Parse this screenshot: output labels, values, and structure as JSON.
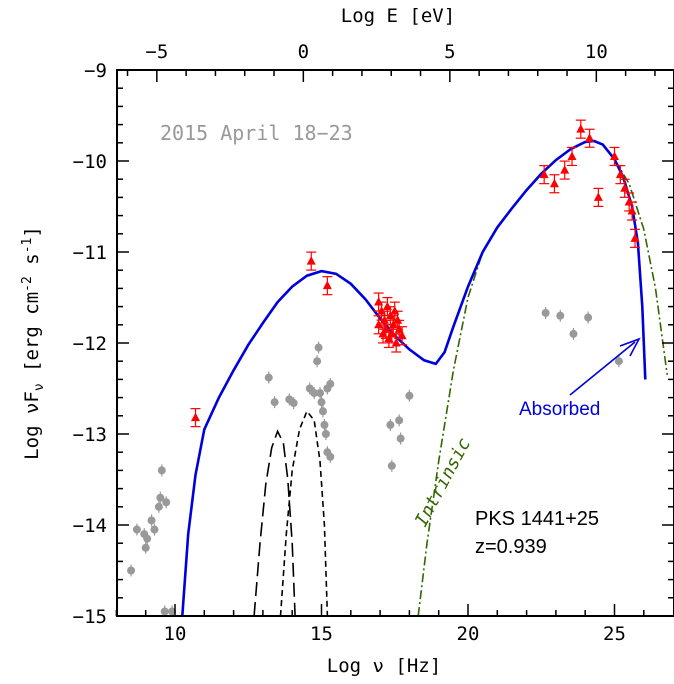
{
  "chart_data": {
    "type": "scatter",
    "xlabel": "Log ν [Hz]",
    "ylabel": "Log νF",
    "ylabel_sub": "ν",
    "ylabel_units": " [erg cm",
    "ylabel_exp1": "-2",
    "ylabel_mid": " s",
    "ylabel_exp2": "-1",
    "ylabel_end": "]",
    "x2label": "Log E [eV]",
    "xlim": [
      8,
      26.8
    ],
    "ylim": [
      -15,
      -9
    ],
    "xticks": [
      "10",
      "15",
      "20",
      "25"
    ],
    "yticks": [
      "−15",
      "−14",
      "−13",
      "−12",
      "−11",
      "−10",
      "−9"
    ],
    "x2ticks": [
      "−5",
      "0",
      "5",
      "10"
    ],
    "annotations": {
      "epoch": "2015 April 18−23",
      "source": "PKS 1441+25",
      "redshift": "z=0.939",
      "intrinsic": "Intrinsic",
      "absorbed": "Absorbed"
    },
    "colors": {
      "red": "#ff0000",
      "grey": "#999999",
      "blue": "#0000dd",
      "green": "#336600",
      "black": "#000000"
    },
    "red_points": [
      [
        10.7,
        -12.82
      ],
      [
        14.65,
        -11.1
      ],
      [
        15.2,
        -11.37
      ],
      [
        16.95,
        -11.55
      ],
      [
        16.95,
        -11.8
      ],
      [
        17.05,
        -11.65
      ],
      [
        17.1,
        -11.9
      ],
      [
        17.15,
        -11.75
      ],
      [
        17.2,
        -11.85
      ],
      [
        17.25,
        -11.6
      ],
      [
        17.3,
        -11.95
      ],
      [
        17.35,
        -11.7
      ],
      [
        17.4,
        -11.9
      ],
      [
        17.45,
        -11.8
      ],
      [
        17.5,
        -11.65
      ],
      [
        17.55,
        -12.0
      ],
      [
        17.6,
        -11.75
      ],
      [
        17.65,
        -11.85
      ],
      [
        17.75,
        -11.92
      ],
      [
        22.6,
        -10.15
      ],
      [
        22.95,
        -10.25
      ],
      [
        23.3,
        -10.1
      ],
      [
        23.55,
        -9.95
      ],
      [
        23.85,
        -9.65
      ],
      [
        24.15,
        -9.75
      ],
      [
        24.45,
        -10.4
      ],
      [
        25.0,
        -9.95
      ],
      [
        25.2,
        -10.15
      ],
      [
        25.35,
        -10.3
      ],
      [
        25.5,
        -10.45
      ],
      [
        25.6,
        -10.55
      ],
      [
        25.7,
        -10.85
      ]
    ],
    "grey_points": [
      [
        8.5,
        -14.5
      ],
      [
        8.7,
        -14.05
      ],
      [
        8.95,
        -14.1
      ],
      [
        9.0,
        -14.25
      ],
      [
        9.05,
        -14.15
      ],
      [
        9.2,
        -13.95
      ],
      [
        9.3,
        -14.05
      ],
      [
        9.45,
        -13.8
      ],
      [
        9.5,
        -13.7
      ],
      [
        9.55,
        -13.4
      ],
      [
        9.7,
        -13.75
      ],
      [
        9.65,
        -14.95
      ],
      [
        9.9,
        -14.95
      ],
      [
        13.2,
        -12.38
      ],
      [
        13.4,
        -12.65
      ],
      [
        13.9,
        -12.62
      ],
      [
        14.05,
        -12.66
      ],
      [
        14.6,
        -12.5
      ],
      [
        14.75,
        -12.55
      ],
      [
        14.85,
        -12.2
      ],
      [
        14.9,
        -12.05
      ],
      [
        14.95,
        -12.55
      ],
      [
        15.0,
        -12.65
      ],
      [
        15.05,
        -12.75
      ],
      [
        15.1,
        -12.9
      ],
      [
        15.15,
        -13.0
      ],
      [
        15.2,
        -13.2
      ],
      [
        15.3,
        -13.25
      ],
      [
        15.2,
        -12.5
      ],
      [
        15.3,
        -12.45
      ],
      [
        17.35,
        -12.9
      ],
      [
        17.4,
        -13.35
      ],
      [
        17.65,
        -12.85
      ],
      [
        17.7,
        -13.05
      ],
      [
        18.0,
        -12.58
      ],
      [
        22.65,
        -11.67
      ],
      [
        23.15,
        -11.7
      ],
      [
        23.6,
        -11.9
      ],
      [
        24.1,
        -11.72
      ],
      [
        25.15,
        -12.2
      ]
    ],
    "blue_model": [
      [
        10.25,
        -15.0
      ],
      [
        10.45,
        -14.1
      ],
      [
        10.7,
        -13.45
      ],
      [
        11.0,
        -12.95
      ],
      [
        11.5,
        -12.6
      ],
      [
        12.0,
        -12.3
      ],
      [
        12.5,
        -12.02
      ],
      [
        13.0,
        -11.78
      ],
      [
        13.5,
        -11.55
      ],
      [
        14.0,
        -11.38
      ],
      [
        14.5,
        -11.26
      ],
      [
        15.0,
        -11.21
      ],
      [
        15.5,
        -11.24
      ],
      [
        16.0,
        -11.35
      ],
      [
        16.5,
        -11.52
      ],
      [
        17.0,
        -11.73
      ],
      [
        17.5,
        -11.92
      ],
      [
        18.0,
        -12.07
      ],
      [
        18.5,
        -12.19
      ],
      [
        18.9,
        -12.23
      ],
      [
        19.2,
        -12.1
      ],
      [
        19.5,
        -11.82
      ],
      [
        20.0,
        -11.38
      ],
      [
        20.5,
        -11.0
      ],
      [
        21.0,
        -10.73
      ],
      [
        21.5,
        -10.52
      ],
      [
        22.0,
        -10.32
      ],
      [
        22.5,
        -10.14
      ],
      [
        23.0,
        -9.99
      ],
      [
        23.5,
        -9.87
      ],
      [
        24.0,
        -9.79
      ],
      [
        24.3,
        -9.78
      ],
      [
        24.6,
        -9.82
      ],
      [
        25.0,
        -9.98
      ],
      [
        25.3,
        -10.18
      ],
      [
        25.6,
        -10.5
      ],
      [
        25.8,
        -10.9
      ],
      [
        25.95,
        -11.6
      ],
      [
        26.05,
        -12.4
      ]
    ],
    "green_model": [
      [
        18.3,
        -15.0
      ],
      [
        18.6,
        -14.2
      ],
      [
        19.0,
        -13.3
      ],
      [
        19.5,
        -12.3
      ],
      [
        20.0,
        -11.5
      ],
      [
        20.5,
        -11.0
      ],
      [
        21.0,
        -10.73
      ],
      [
        21.5,
        -10.52
      ],
      [
        22.0,
        -10.32
      ],
      [
        22.5,
        -10.14
      ],
      [
        23.0,
        -9.99
      ],
      [
        23.5,
        -9.87
      ],
      [
        24.0,
        -9.79
      ],
      [
        24.3,
        -9.78
      ],
      [
        24.6,
        -9.82
      ],
      [
        25.0,
        -9.98
      ],
      [
        25.5,
        -10.25
      ],
      [
        26.0,
        -10.75
      ],
      [
        26.4,
        -11.4
      ],
      [
        26.8,
        -12.35
      ]
    ],
    "black_longdash": [
      [
        12.7,
        -15.0
      ],
      [
        12.9,
        -14.2
      ],
      [
        13.1,
        -13.55
      ],
      [
        13.3,
        -13.15
      ],
      [
        13.5,
        -12.97
      ],
      [
        13.7,
        -13.1
      ],
      [
        13.85,
        -13.5
      ],
      [
        14.0,
        -14.2
      ],
      [
        14.1,
        -15.0
      ]
    ],
    "black_shortdash": [
      [
        13.6,
        -15.0
      ],
      [
        13.8,
        -14.1
      ],
      [
        14.0,
        -13.4
      ],
      [
        14.25,
        -12.95
      ],
      [
        14.5,
        -12.75
      ],
      [
        14.75,
        -12.85
      ],
      [
        14.95,
        -13.3
      ],
      [
        15.1,
        -14.0
      ],
      [
        15.2,
        -15.0
      ]
    ]
  }
}
